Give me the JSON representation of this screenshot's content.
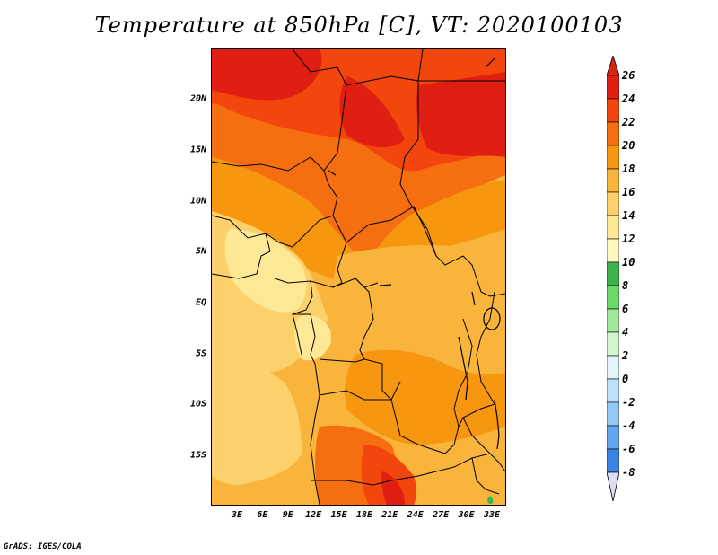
{
  "title": "Temperature at 850hPa [C], VT: 2020100103",
  "credit": "GrADS: IGES/COLA",
  "lat_labels": [
    "20N",
    "15N",
    "10N",
    "5N",
    "EQ",
    "5S",
    "10S",
    "15S"
  ],
  "lon_labels": [
    "3E",
    "6E",
    "9E",
    "12E",
    "15E",
    "18E",
    "21E",
    "24E",
    "27E",
    "30E",
    "33E"
  ],
  "colorbar": {
    "labels": [
      "26",
      "24",
      "22",
      "20",
      "18",
      "16",
      "14",
      "12",
      "10",
      "8",
      "6",
      "4",
      "2",
      "0",
      "-2",
      "-4",
      "-6",
      "-8"
    ],
    "colors": [
      "#e01e12",
      "#f2460d",
      "#f56e10",
      "#f7960f",
      "#f9b43b",
      "#fcd06b",
      "#fde895",
      "#fff8be",
      "#3cb44a",
      "#6bd86b",
      "#a0e89a",
      "#d2f5cd",
      "#e3f3fc",
      "#bde1fa",
      "#92c8f4",
      "#62a7ee",
      "#3a84e2",
      "#1a5fcc",
      "#0e3c9e",
      "#0a1e78"
    ],
    "overflow_high_color": "#d6270e",
    "overflow_low_color": "#dcdcf5"
  },
  "field_colors": {
    "c26": "#e01e12",
    "c24": "#f2460d",
    "c22": "#f56e10",
    "c20": "#f7960f",
    "c18": "#f9b43b",
    "c16": "#fcd06b",
    "c14": "#fde895",
    "green": "#3cb44a"
  }
}
